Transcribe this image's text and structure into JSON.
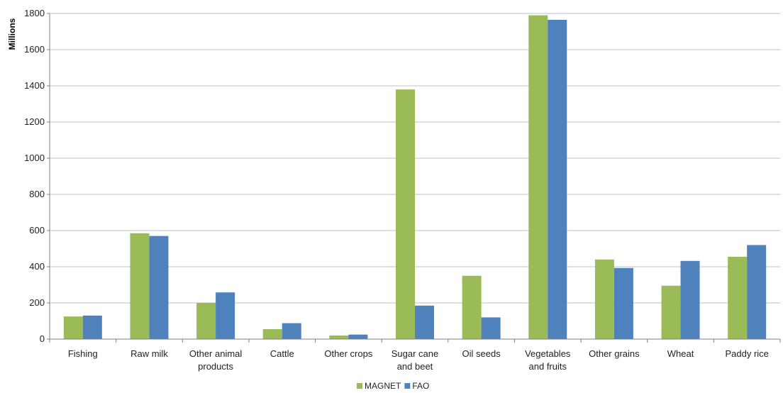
{
  "chart_data": {
    "type": "bar",
    "ylabel": "Millions",
    "ylim": [
      0,
      1800
    ],
    "yticks": [
      0,
      200,
      400,
      600,
      800,
      1000,
      1200,
      1400,
      1600,
      1800
    ],
    "grid": true,
    "legend_position": "bottom",
    "categories": [
      [
        "Fishing"
      ],
      [
        "Raw milk"
      ],
      [
        "Other animal",
        "products"
      ],
      [
        "Cattle"
      ],
      [
        "Other crops"
      ],
      [
        "Sugar cane",
        "and beet"
      ],
      [
        "Oil seeds"
      ],
      [
        "Vegetables",
        "and fruits"
      ],
      [
        "Other grains"
      ],
      [
        "Wheat"
      ],
      [
        "Paddy rice"
      ]
    ],
    "series": [
      {
        "name": "MAGNET",
        "color": "#9BBB59",
        "values": [
          125,
          585,
          200,
          55,
          20,
          1380,
          350,
          1790,
          440,
          295,
          455
        ]
      },
      {
        "name": "FAO",
        "color": "#4F81BD",
        "values": [
          130,
          570,
          258,
          88,
          25,
          185,
          120,
          1765,
          393,
          432,
          520
        ]
      }
    ]
  }
}
